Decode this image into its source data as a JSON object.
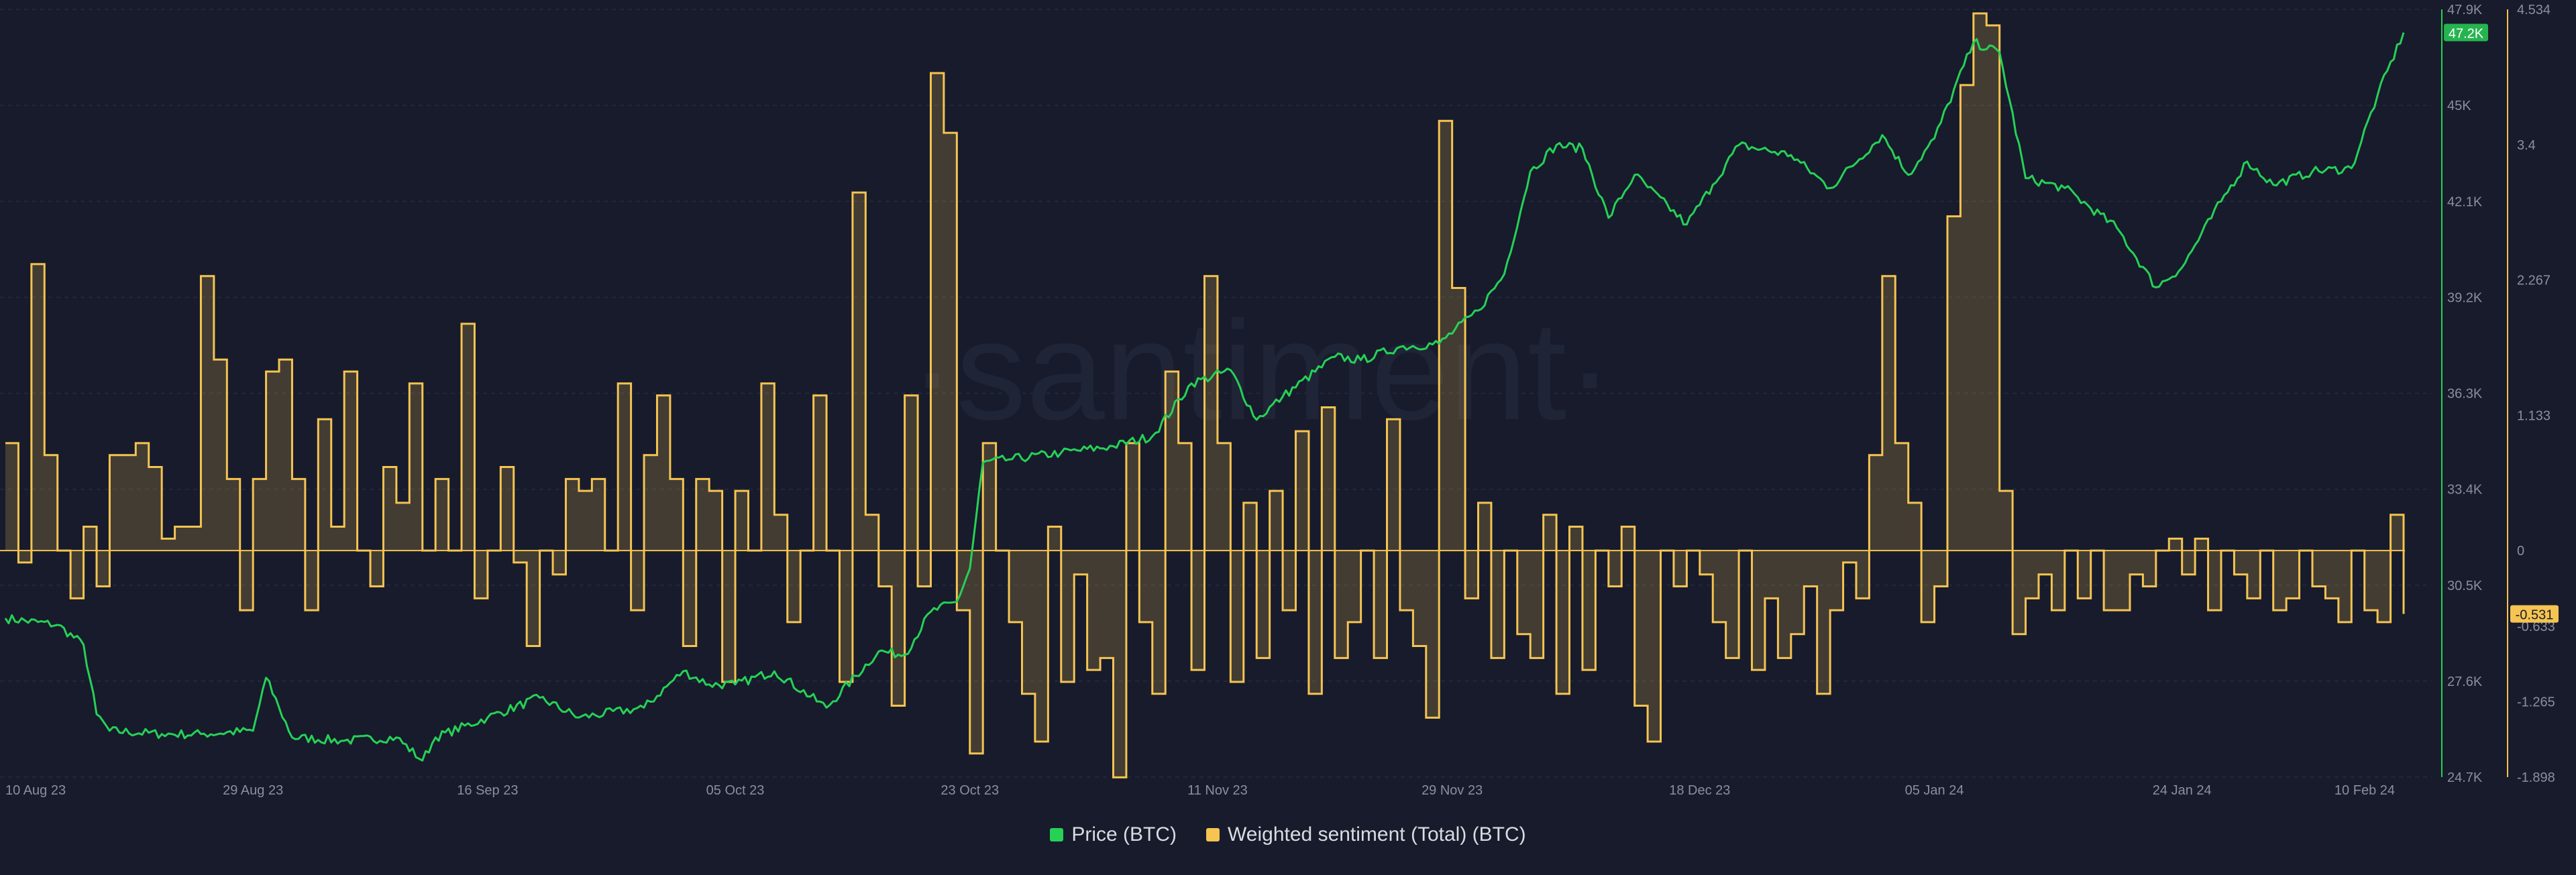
{
  "chart_data": {
    "type": "line",
    "watermark": "·santiment·",
    "x_ticks": [
      "10 Aug 23",
      "29 Aug 23",
      "16 Sep 23",
      "05 Oct 23",
      "23 Oct 23",
      "11 Nov 23",
      "29 Nov 23",
      "18 Dec 23",
      "05 Jan 24",
      "24 Jan 24",
      "10 Feb 24"
    ],
    "xlim": [
      "10 Aug 23",
      "10 Feb 24"
    ],
    "series": [
      {
        "name": "Price (BTC)",
        "color": "#26d156",
        "axis": "left",
        "ylim": [
          24700,
          47900
        ],
        "y_ticks": [
          "47.9K",
          "45K",
          "42.1K",
          "39.2K",
          "36.3K",
          "33.4K",
          "30.5K",
          "27.6K",
          "24.7K"
        ],
        "current_value_label": "47.2K",
        "points": [
          [
            "10 Aug 23",
            29500
          ],
          [
            "14 Aug 23",
            29300
          ],
          [
            "16 Aug 23",
            28700
          ],
          [
            "17 Aug 23",
            26600
          ],
          [
            "18 Aug 23",
            26100
          ],
          [
            "22 Aug 23",
            26000
          ],
          [
            "25 Aug 23",
            26000
          ],
          [
            "29 Aug 23",
            26100
          ],
          [
            "30 Aug 23",
            27700
          ],
          [
            "31 Aug 23",
            26800
          ],
          [
            "1 Sep 23",
            25900
          ],
          [
            "5 Sep 23",
            25800
          ],
          [
            "9 Sep 23",
            25900
          ],
          [
            "11 Sep 23",
            25200
          ],
          [
            "12 Sep 23",
            25900
          ],
          [
            "16 Sep 23",
            26500
          ],
          [
            "20 Sep 23",
            27100
          ],
          [
            "23 Sep 23",
            26500
          ],
          [
            "28 Sep 23",
            26800
          ],
          [
            "1 Oct 23",
            27900
          ],
          [
            "3 Oct 23",
            27500
          ],
          [
            "5 Oct 23",
            27500
          ],
          [
            "8 Oct 23",
            27900
          ],
          [
            "12 Oct 23",
            26800
          ],
          [
            "16 Oct 23",
            28500
          ],
          [
            "18 Oct 23",
            28400
          ],
          [
            "20 Oct 23",
            29700
          ],
          [
            "22 Oct 23",
            30000
          ],
          [
            "23 Oct 23",
            31000
          ],
          [
            "24 Oct 23",
            34200
          ],
          [
            "26 Oct 23",
            34300
          ],
          [
            "30 Oct 23",
            34500
          ],
          [
            "3 Nov 23",
            34700
          ],
          [
            "6 Nov 23",
            35000
          ],
          [
            "9 Nov 23",
            36600
          ],
          [
            "12 Nov 23",
            37000
          ],
          [
            "14 Nov 23",
            35500
          ],
          [
            "16 Nov 23",
            36200
          ],
          [
            "20 Nov 23",
            37400
          ],
          [
            "22 Nov 23",
            37300
          ],
          [
            "25 Nov 23",
            37700
          ],
          [
            "28 Nov 23",
            37800
          ],
          [
            "1 Dec 23",
            38800
          ],
          [
            "3 Dec 23",
            39900
          ],
          [
            "5 Dec 23",
            43000
          ],
          [
            "7 Dec 23",
            43800
          ],
          [
            "9 Dec 23",
            43700
          ],
          [
            "11 Dec 23",
            41600
          ],
          [
            "13 Dec 23",
            42900
          ],
          [
            "17 Dec 23",
            41400
          ],
          [
            "19 Dec 23",
            42600
          ],
          [
            "21 Dec 23",
            43800
          ],
          [
            "25 Dec 23",
            43500
          ],
          [
            "28 Dec 23",
            42500
          ],
          [
            "1 Jan 24",
            44100
          ],
          [
            "3 Jan 24",
            42900
          ],
          [
            "5 Jan 24",
            44000
          ],
          [
            "8 Jan 24",
            46900
          ],
          [
            "10 Jan 24",
            46600
          ],
          [
            "12 Jan 24",
            42800
          ],
          [
            "15 Jan 24",
            42500
          ],
          [
            "19 Jan 24",
            41300
          ],
          [
            "22 Jan 24",
            39500
          ],
          [
            "24 Jan 24",
            40100
          ],
          [
            "27 Jan 24",
            42100
          ],
          [
            "29 Jan 24",
            43300
          ],
          [
            "31 Jan 24",
            42600
          ],
          [
            "3 Feb 24",
            43000
          ],
          [
            "6 Feb 24",
            43100
          ],
          [
            "8 Feb 24",
            45300
          ],
          [
            "10 Feb 24",
            47200
          ]
        ]
      },
      {
        "name": "Weighted sentiment (Total) (BTC)",
        "color": "#f5c451",
        "axis": "right",
        "ylim": [
          -1.898,
          4.534
        ],
        "y_ticks": [
          "4.534",
          "3.4",
          "2.267",
          "1.133",
          "0",
          "-0.633",
          "-1.265",
          "-1.898"
        ],
        "current_value_label": "-0.531",
        "points": [
          [
            "10 Aug 23",
            0.9
          ],
          [
            "11 Aug 23",
            -0.1
          ],
          [
            "12 Aug 23",
            2.4
          ],
          [
            "13 Aug 23",
            0.8
          ],
          [
            "14 Aug 23",
            0.0
          ],
          [
            "15 Aug 23",
            -0.4
          ],
          [
            "16 Aug 23",
            0.2
          ],
          [
            "17 Aug 23",
            -0.3
          ],
          [
            "18 Aug 23",
            0.8
          ],
          [
            "19 Aug 23",
            0.8
          ],
          [
            "20 Aug 23",
            0.9
          ],
          [
            "21 Aug 23",
            0.7
          ],
          [
            "22 Aug 23",
            0.1
          ],
          [
            "23 Aug 23",
            0.2
          ],
          [
            "24 Aug 23",
            0.2
          ],
          [
            "25 Aug 23",
            2.3
          ],
          [
            "26 Aug 23",
            1.6
          ],
          [
            "27 Aug 23",
            0.6
          ],
          [
            "28 Aug 23",
            -0.5
          ],
          [
            "29 Aug 23",
            0.6
          ],
          [
            "30 Aug 23",
            1.5
          ],
          [
            "31 Aug 23",
            1.6
          ],
          [
            "1 Sep 23",
            0.6
          ],
          [
            "2 Sep 23",
            -0.5
          ],
          [
            "3 Sep 23",
            1.1
          ],
          [
            "4 Sep 23",
            0.2
          ],
          [
            "5 Sep 23",
            1.5
          ],
          [
            "6 Sep 23",
            0.0
          ],
          [
            "7 Sep 23",
            -0.3
          ],
          [
            "8 Sep 23",
            0.7
          ],
          [
            "9 Sep 23",
            0.4
          ],
          [
            "10 Sep 23",
            1.4
          ],
          [
            "11 Sep 23",
            0.0
          ],
          [
            "12 Sep 23",
            0.6
          ],
          [
            "13 Sep 23",
            0.0
          ],
          [
            "14 Sep 23",
            1.9
          ],
          [
            "15 Sep 23",
            -0.4
          ],
          [
            "16 Sep 23",
            0.0
          ],
          [
            "17 Sep 23",
            0.7
          ],
          [
            "18 Sep 23",
            -0.1
          ],
          [
            "19 Sep 23",
            -0.8
          ],
          [
            "20 Sep 23",
            0.0
          ],
          [
            "21 Sep 23",
            -0.2
          ],
          [
            "22 Sep 23",
            0.6
          ],
          [
            "23 Sep 23",
            0.5
          ],
          [
            "24 Sep 23",
            0.6
          ],
          [
            "25 Sep 23",
            0.0
          ],
          [
            "26 Sep 23",
            1.4
          ],
          [
            "27 Sep 23",
            -0.5
          ],
          [
            "28 Sep 23",
            0.8
          ],
          [
            "29 Sep 23",
            1.3
          ],
          [
            "30 Sep 23",
            0.6
          ],
          [
            "1 Oct 23",
            -0.8
          ],
          [
            "2 Oct 23",
            0.6
          ],
          [
            "3 Oct 23",
            0.5
          ],
          [
            "4 Oct 23",
            -1.1
          ],
          [
            "5 Oct 23",
            0.5
          ],
          [
            "6 Oct 23",
            0.0
          ],
          [
            "7 Oct 23",
            1.4
          ],
          [
            "8 Oct 23",
            0.3
          ],
          [
            "9 Oct 23",
            -0.6
          ],
          [
            "10 Oct 23",
            0.0
          ],
          [
            "11 Oct 23",
            1.3
          ],
          [
            "12 Oct 23",
            0.0
          ],
          [
            "13 Oct 23",
            -1.1
          ],
          [
            "14 Oct 23",
            3.0
          ],
          [
            "15 Oct 23",
            0.3
          ],
          [
            "16 Oct 23",
            -0.3
          ],
          [
            "17 Oct 23",
            -1.3
          ],
          [
            "18 Oct 23",
            1.3
          ],
          [
            "19 Oct 23",
            -0.3
          ],
          [
            "20 Oct 23",
            4.0
          ],
          [
            "21 Oct 23",
            3.5
          ],
          [
            "22 Oct 23",
            -0.5
          ],
          [
            "23 Oct 23",
            -1.7
          ],
          [
            "24 Oct 23",
            0.9
          ],
          [
            "25 Oct 23",
            0.0
          ],
          [
            "26 Oct 23",
            -0.6
          ],
          [
            "27 Oct 23",
            -1.2
          ],
          [
            "28 Oct 23",
            -1.6
          ],
          [
            "29 Oct 23",
            0.2
          ],
          [
            "30 Oct 23",
            -1.1
          ],
          [
            "31 Oct 23",
            -0.2
          ],
          [
            "1 Nov 23",
            -1.0
          ],
          [
            "2 Nov 23",
            -0.9
          ],
          [
            "3 Nov 23",
            -1.9
          ],
          [
            "4 Nov 23",
            0.9
          ],
          [
            "5 Nov 23",
            -0.6
          ],
          [
            "6 Nov 23",
            -1.2
          ],
          [
            "7 Nov 23",
            1.5
          ],
          [
            "8 Nov 23",
            0.9
          ],
          [
            "9 Nov 23",
            -1.0
          ],
          [
            "10 Nov 23",
            2.3
          ],
          [
            "11 Nov 23",
            0.9
          ],
          [
            "12 Nov 23",
            -1.1
          ],
          [
            "13 Nov 23",
            0.4
          ],
          [
            "14 Nov 23",
            -0.9
          ],
          [
            "15 Nov 23",
            0.5
          ],
          [
            "16 Nov 23",
            -0.5
          ],
          [
            "17 Nov 23",
            1.0
          ],
          [
            "18 Nov 23",
            -1.2
          ],
          [
            "19 Nov 23",
            1.2
          ],
          [
            "20 Nov 23",
            -0.9
          ],
          [
            "21 Nov 23",
            -0.6
          ],
          [
            "22 Nov 23",
            0.0
          ],
          [
            "23 Nov 23",
            -0.9
          ],
          [
            "24 Nov 23",
            1.1
          ],
          [
            "25 Nov 23",
            -0.5
          ],
          [
            "26 Nov 23",
            -0.8
          ],
          [
            "27 Nov 23",
            -1.4
          ],
          [
            "28 Nov 23",
            3.6
          ],
          [
            "29 Nov 23",
            2.2
          ],
          [
            "30 Nov 23",
            -0.4
          ],
          [
            "1 Dec 23",
            0.4
          ],
          [
            "2 Dec 23",
            -0.9
          ],
          [
            "3 Dec 23",
            0.0
          ],
          [
            "4 Dec 23",
            -0.7
          ],
          [
            "5 Dec 23",
            -0.9
          ],
          [
            "6 Dec 23",
            0.3
          ],
          [
            "7 Dec 23",
            -1.2
          ],
          [
            "8 Dec 23",
            0.2
          ],
          [
            "9 Dec 23",
            -1.0
          ],
          [
            "10 Dec 23",
            0.0
          ],
          [
            "11 Dec 23",
            -0.3
          ],
          [
            "12 Dec 23",
            0.2
          ],
          [
            "13 Dec 23",
            -1.3
          ],
          [
            "14 Dec 23",
            -1.6
          ],
          [
            "15 Dec 23",
            0.0
          ],
          [
            "16 Dec 23",
            -0.3
          ],
          [
            "17 Dec 23",
            0.0
          ],
          [
            "18 Dec 23",
            -0.2
          ],
          [
            "19 Dec 23",
            -0.6
          ],
          [
            "20 Dec 23",
            -0.9
          ],
          [
            "21 Dec 23",
            0.0
          ],
          [
            "22 Dec 23",
            -1.0
          ],
          [
            "23 Dec 23",
            -0.4
          ],
          [
            "24 Dec 23",
            -0.9
          ],
          [
            "25 Dec 23",
            -0.7
          ],
          [
            "26 Dec 23",
            -0.3
          ],
          [
            "27 Dec 23",
            -1.2
          ],
          [
            "28 Dec 23",
            -0.5
          ],
          [
            "29 Dec 23",
            -0.1
          ],
          [
            "30 Dec 23",
            -0.4
          ],
          [
            "31 Dec 23",
            0.8
          ],
          [
            "1 Jan 24",
            2.3
          ],
          [
            "2 Jan 24",
            0.9
          ],
          [
            "3 Jan 24",
            0.4
          ],
          [
            "4 Jan 24",
            -0.6
          ],
          [
            "5 Jan 24",
            -0.3
          ],
          [
            "6 Jan 24",
            2.8
          ],
          [
            "7 Jan 24",
            3.9
          ],
          [
            "8 Jan 24",
            4.5
          ],
          [
            "9 Jan 24",
            4.4
          ],
          [
            "10 Jan 24",
            0.5
          ],
          [
            "11 Jan 24",
            -0.7
          ],
          [
            "12 Jan 24",
            -0.4
          ],
          [
            "13 Jan 24",
            -0.2
          ],
          [
            "14 Jan 24",
            -0.5
          ],
          [
            "15 Jan 24",
            0.0
          ],
          [
            "16 Jan 24",
            -0.4
          ],
          [
            "17 Jan 24",
            0.0
          ],
          [
            "18 Jan 24",
            -0.5
          ],
          [
            "19 Jan 24",
            -0.5
          ],
          [
            "20 Jan 24",
            -0.2
          ],
          [
            "21 Jan 24",
            -0.3
          ],
          [
            "22 Jan 24",
            0.0
          ],
          [
            "23 Jan 24",
            0.1
          ],
          [
            "24 Jan 24",
            -0.2
          ],
          [
            "25 Jan 24",
            0.1
          ],
          [
            "26 Jan 24",
            -0.5
          ],
          [
            "27 Jan 24",
            0.0
          ],
          [
            "28 Jan 24",
            -0.2
          ],
          [
            "29 Jan 24",
            -0.4
          ],
          [
            "30 Jan 24",
            0.0
          ],
          [
            "31 Jan 24",
            -0.5
          ],
          [
            "1 Feb 24",
            -0.4
          ],
          [
            "2 Feb 24",
            0.0
          ],
          [
            "3 Feb 24",
            -0.3
          ],
          [
            "4 Feb 24",
            -0.4
          ],
          [
            "5 Feb 24",
            -0.6
          ],
          [
            "6 Feb 24",
            0.0
          ],
          [
            "7 Feb 24",
            -0.5
          ],
          [
            "8 Feb 24",
            -0.6
          ],
          [
            "9 Feb 24",
            0.3
          ],
          [
            "10 Feb 24",
            -0.531
          ]
        ]
      }
    ],
    "zero_line": 0,
    "grid": true,
    "legend_position": "bottom-center"
  }
}
